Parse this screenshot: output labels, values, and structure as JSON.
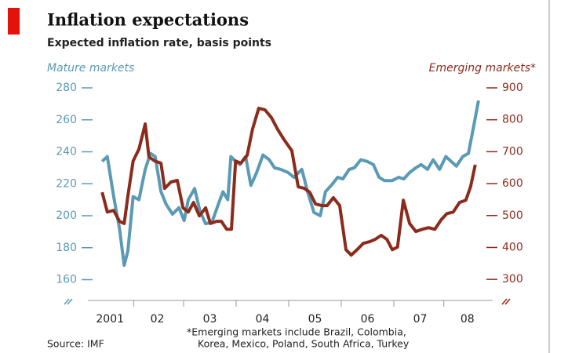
{
  "chart_data": {
    "type": "line",
    "title": "Inflation expectations",
    "subtitle": "Expected inflation rate, basis points",
    "footnote": [
      "*Emerging markets include Brazil, Colombia,",
      "Korea, Mexico, Poland, South Africa, Turkey"
    ],
    "source": "Source: IMF",
    "xlim": [
      2001,
      2008.9
    ],
    "xticks": [
      {
        "value": 2001.6,
        "label": "2001"
      },
      {
        "value": 2002.5,
        "label": "02"
      },
      {
        "value": 2003.5,
        "label": "03"
      },
      {
        "value": 2004.5,
        "label": "04"
      },
      {
        "value": 2005.5,
        "label": "05"
      },
      {
        "value": 2006.5,
        "label": "06"
      },
      {
        "value": 2007.5,
        "label": "07"
      },
      {
        "value": 2008.4,
        "label": "08"
      }
    ],
    "ylim": [
      147,
      280
    ],
    "yticks": [
      160,
      180,
      200,
      220,
      240,
      260,
      280
    ],
    "y2lim": [
      234,
      900
    ],
    "y2ticks": [
      300,
      400,
      500,
      600,
      700,
      800,
      900
    ],
    "series": [
      {
        "name": "Mature markets",
        "color": "#5a9ab5",
        "x": [
          2001.45,
          2001.55,
          2001.67,
          2001.78,
          2001.87,
          2001.94,
          2002.04,
          2002.15,
          2002.27,
          2002.37,
          2002.46,
          2002.57,
          2002.67,
          2002.79,
          2002.91,
          2003.01,
          2003.09,
          2003.21,
          2003.31,
          2003.42,
          2003.54,
          2003.66,
          2003.75,
          2003.84,
          2003.9,
          2003.99,
          2004.07,
          2004.18,
          2004.28,
          2004.39,
          2004.51,
          2004.63,
          2004.73,
          2004.85,
          2004.99,
          2005.1,
          2005.25,
          2005.36,
          2005.48,
          2005.6,
          2005.7,
          2005.81,
          2005.93,
          2006.03,
          2006.15,
          2006.25,
          2006.37,
          2006.49,
          2006.61,
          2006.72,
          2006.82,
          2006.97,
          2007.09,
          2007.19,
          2007.3,
          2007.42,
          2007.52,
          2007.64,
          2007.75,
          2007.87,
          2007.99,
          2008.09,
          2008.19,
          2008.31,
          2008.42,
          2008.52,
          2008.61
        ],
        "values": [
          234,
          237,
          212,
          192,
          169,
          178,
          212,
          210,
          229,
          239,
          237,
          215,
          207,
          201,
          205,
          197,
          210,
          217,
          203,
          195,
          196,
          207,
          215,
          210,
          237,
          234,
          232,
          237,
          219,
          227,
          238,
          235,
          230,
          229,
          227,
          224,
          229,
          215,
          202,
          200,
          215,
          219,
          224,
          223,
          229,
          230,
          235,
          234,
          232,
          224,
          222,
          222,
          224,
          223,
          227,
          230,
          232,
          229,
          235,
          229,
          237,
          234,
          231,
          237,
          239,
          256,
          272
        ]
      },
      {
        "name": "Emerging markets*",
        "color": "#8c2b1c",
        "axis": "y2",
        "x": [
          2001.45,
          2001.55,
          2001.67,
          2001.78,
          2001.87,
          2001.94,
          2002.04,
          2002.15,
          2002.27,
          2002.34,
          2002.45,
          2002.57,
          2002.64,
          2002.76,
          2002.88,
          2002.99,
          2003.09,
          2003.19,
          2003.3,
          2003.42,
          2003.51,
          2003.63,
          2003.72,
          2003.82,
          2003.91,
          2003.99,
          2004.09,
          2004.21,
          2004.31,
          2004.43,
          2004.55,
          2004.67,
          2004.79,
          2004.91,
          2005.06,
          2005.18,
          2005.3,
          2005.4,
          2005.51,
          2005.63,
          2005.73,
          2005.85,
          2005.97,
          2006.09,
          2006.19,
          2006.3,
          2006.42,
          2006.54,
          2006.64,
          2006.76,
          2006.87,
          2006.97,
          2007.07,
          2007.18,
          2007.3,
          2007.42,
          2007.54,
          2007.66,
          2007.78,
          2007.9,
          2008.01,
          2008.13,
          2008.25,
          2008.37,
          2008.46,
          2008.55
        ],
        "values": [
          573,
          511,
          516,
          482,
          475,
          561,
          671,
          708,
          787,
          684,
          671,
          664,
          585,
          605,
          610,
          524,
          511,
          541,
          499,
          524,
          475,
          482,
          482,
          457,
          457,
          671,
          664,
          689,
          770,
          836,
          831,
          807,
          770,
          738,
          703,
          590,
          585,
          573,
          536,
          531,
          531,
          556,
          531,
          393,
          376,
          393,
          413,
          418,
          425,
          438,
          425,
          393,
          401,
          548,
          475,
          450,
          457,
          462,
          457,
          487,
          506,
          511,
          541,
          548,
          590,
          659
        ]
      }
    ]
  }
}
